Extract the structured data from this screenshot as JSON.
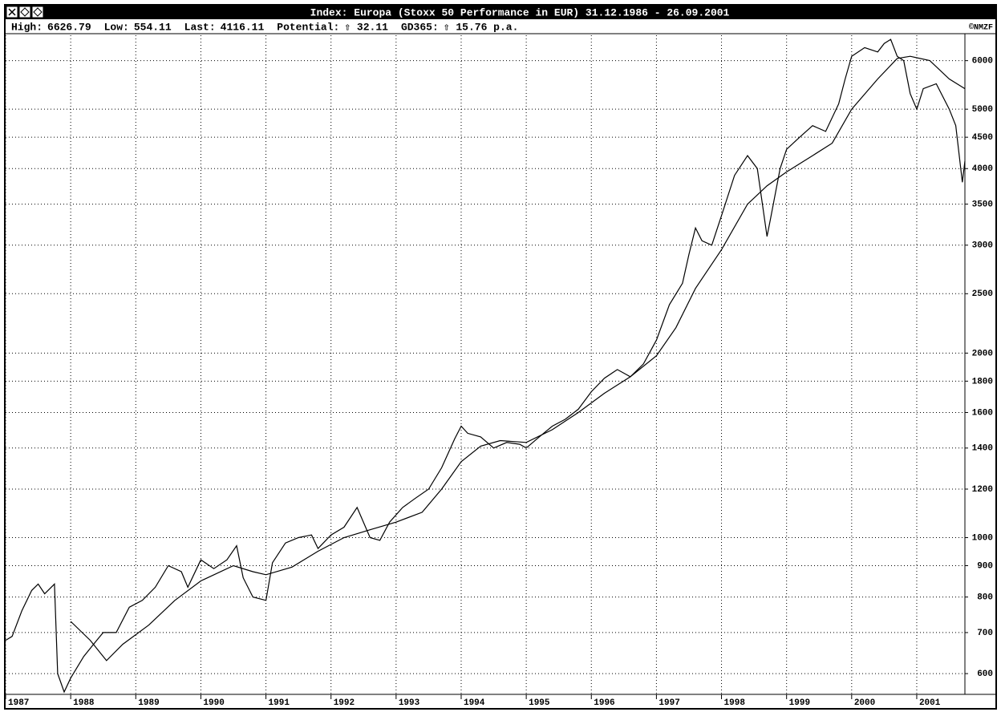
{
  "window": {
    "title": "Index: Europa (Stoxx 50 Performance in EUR) 31.12.1986 - 26.09.2001",
    "stats": [
      {
        "label": "High:",
        "value": "6626.79"
      },
      {
        "label": "Low:",
        "value": "554.11"
      },
      {
        "label": "Last:",
        "value": "4116.11"
      },
      {
        "label": "Potential:",
        "value": "⇧ 32.11"
      },
      {
        "label": "GD365:",
        "value": "⇧ 15.76 p.a."
      }
    ],
    "copyright": "©NMZF"
  },
  "chart_data": {
    "type": "line",
    "log_y": true,
    "grid": true,
    "xlim": [
      1987.0,
      2001.74
    ],
    "xticks": [
      1987,
      1988,
      1989,
      1990,
      1991,
      1992,
      1993,
      1994,
      1995,
      1996,
      1997,
      1998,
      1999,
      2000,
      2001
    ],
    "ylim": [
      555,
      6600
    ],
    "yticks": [
      600,
      700,
      800,
      900,
      1000,
      1200,
      1400,
      1600,
      1800,
      2000,
      2500,
      3000,
      3500,
      4000,
      4500,
      5000,
      6000
    ],
    "series": [
      {
        "color": "#000000",
        "x": [
          1987.0,
          1987.1,
          1987.25,
          1987.4,
          1987.5,
          1987.6,
          1987.75,
          1987.8,
          1987.9,
          1988.0,
          1988.2,
          1988.4,
          1988.5,
          1988.7,
          1988.9,
          1989.1,
          1989.3,
          1989.5,
          1989.7,
          1989.8,
          1990.0,
          1990.2,
          1990.4,
          1990.55,
          1990.65,
          1990.8,
          1991.0,
          1991.1,
          1991.3,
          1991.5,
          1991.7,
          1991.8,
          1992.0,
          1992.2,
          1992.4,
          1992.6,
          1992.75,
          1992.9,
          1993.1,
          1993.3,
          1993.5,
          1993.7,
          1993.9,
          1994.0,
          1994.1,
          1994.3,
          1994.5,
          1994.7,
          1994.9,
          1995.0,
          1995.2,
          1995.4,
          1995.6,
          1995.8,
          1996.0,
          1996.2,
          1996.4,
          1996.6,
          1996.8,
          1997.0,
          1997.2,
          1997.4,
          1997.5,
          1997.6,
          1997.7,
          1997.85,
          1998.0,
          1998.2,
          1998.4,
          1998.55,
          1998.7,
          1998.75,
          1998.9,
          1999.0,
          1999.2,
          1999.4,
          1999.6,
          1999.8,
          1999.9,
          2000.0,
          2000.2,
          2000.4,
          2000.5,
          2000.6,
          2000.7,
          2000.8,
          2000.9,
          2001.0,
          2001.1,
          2001.3,
          2001.5,
          2001.6,
          2001.7,
          2001.74
        ],
        "values": [
          680,
          690,
          760,
          820,
          840,
          810,
          840,
          600,
          560,
          590,
          640,
          680,
          700,
          700,
          770,
          790,
          830,
          900,
          880,
          830,
          920,
          890,
          920,
          970,
          860,
          800,
          790,
          910,
          980,
          1000,
          1010,
          960,
          1010,
          1040,
          1120,
          1000,
          990,
          1060,
          1120,
          1160,
          1200,
          1300,
          1450,
          1520,
          1480,
          1460,
          1400,
          1430,
          1420,
          1400,
          1460,
          1520,
          1560,
          1620,
          1730,
          1820,
          1880,
          1830,
          1920,
          2100,
          2400,
          2600,
          2900,
          3200,
          3050,
          3000,
          3350,
          3900,
          4200,
          4000,
          3100,
          3300,
          4000,
          4300,
          4500,
          4700,
          4600,
          5100,
          5600,
          6100,
          6300,
          6200,
          6400,
          6500,
          6100,
          6000,
          5300,
          5000,
          5400,
          5500,
          5000,
          4700,
          3800,
          4116
        ]
      },
      {
        "color": "#000000",
        "x": [
          1988.0,
          1988.3,
          1988.55,
          1988.8,
          1989.2,
          1989.6,
          1990.0,
          1990.5,
          1990.8,
          1991.0,
          1991.4,
          1991.8,
          1992.2,
          1992.6,
          1993.0,
          1993.4,
          1993.7,
          1994.0,
          1994.3,
          1994.6,
          1995.0,
          1995.4,
          1995.8,
          1996.2,
          1996.6,
          1997.0,
          1997.3,
          1997.6,
          1998.0,
          1998.4,
          1998.7,
          1999.0,
          1999.4,
          1999.7,
          2000.0,
          2000.4,
          2000.7,
          2000.9,
          2001.2,
          2001.5,
          2001.74
        ],
        "values": [
          730,
          680,
          630,
          670,
          720,
          790,
          850,
          900,
          880,
          870,
          895,
          950,
          1000,
          1030,
          1060,
          1100,
          1200,
          1330,
          1410,
          1440,
          1430,
          1500,
          1600,
          1720,
          1830,
          1980,
          2200,
          2550,
          2950,
          3500,
          3750,
          3950,
          4200,
          4400,
          5000,
          5600,
          6050,
          6100,
          6000,
          5600,
          5400
        ]
      }
    ]
  }
}
